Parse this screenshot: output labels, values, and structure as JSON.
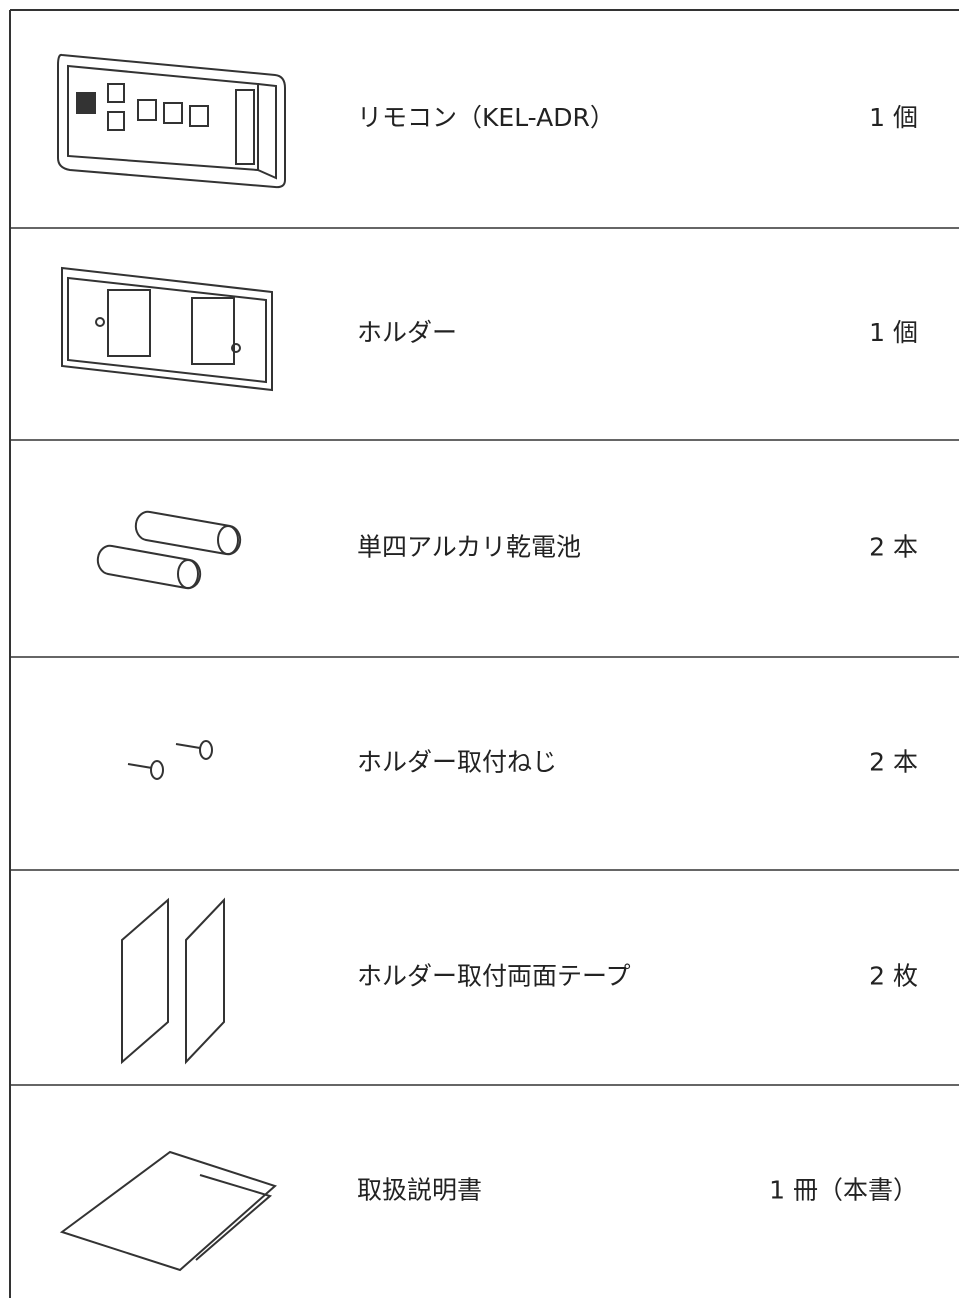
{
  "items": [
    {
      "name": "リモコン（KEL-ADR）",
      "quantity": "1 個"
    },
    {
      "name": "ホルダー",
      "quantity": "1 個"
    },
    {
      "name": "単四アルカリ乾電池",
      "quantity": "2 本"
    },
    {
      "name": "ホルダー取付ねじ",
      "quantity": "2 本"
    },
    {
      "name": "ホルダー取付両面テープ",
      "quantity": "2 枚"
    },
    {
      "name": "取扱説明書",
      "quantity": "1 冊（本書）"
    }
  ]
}
